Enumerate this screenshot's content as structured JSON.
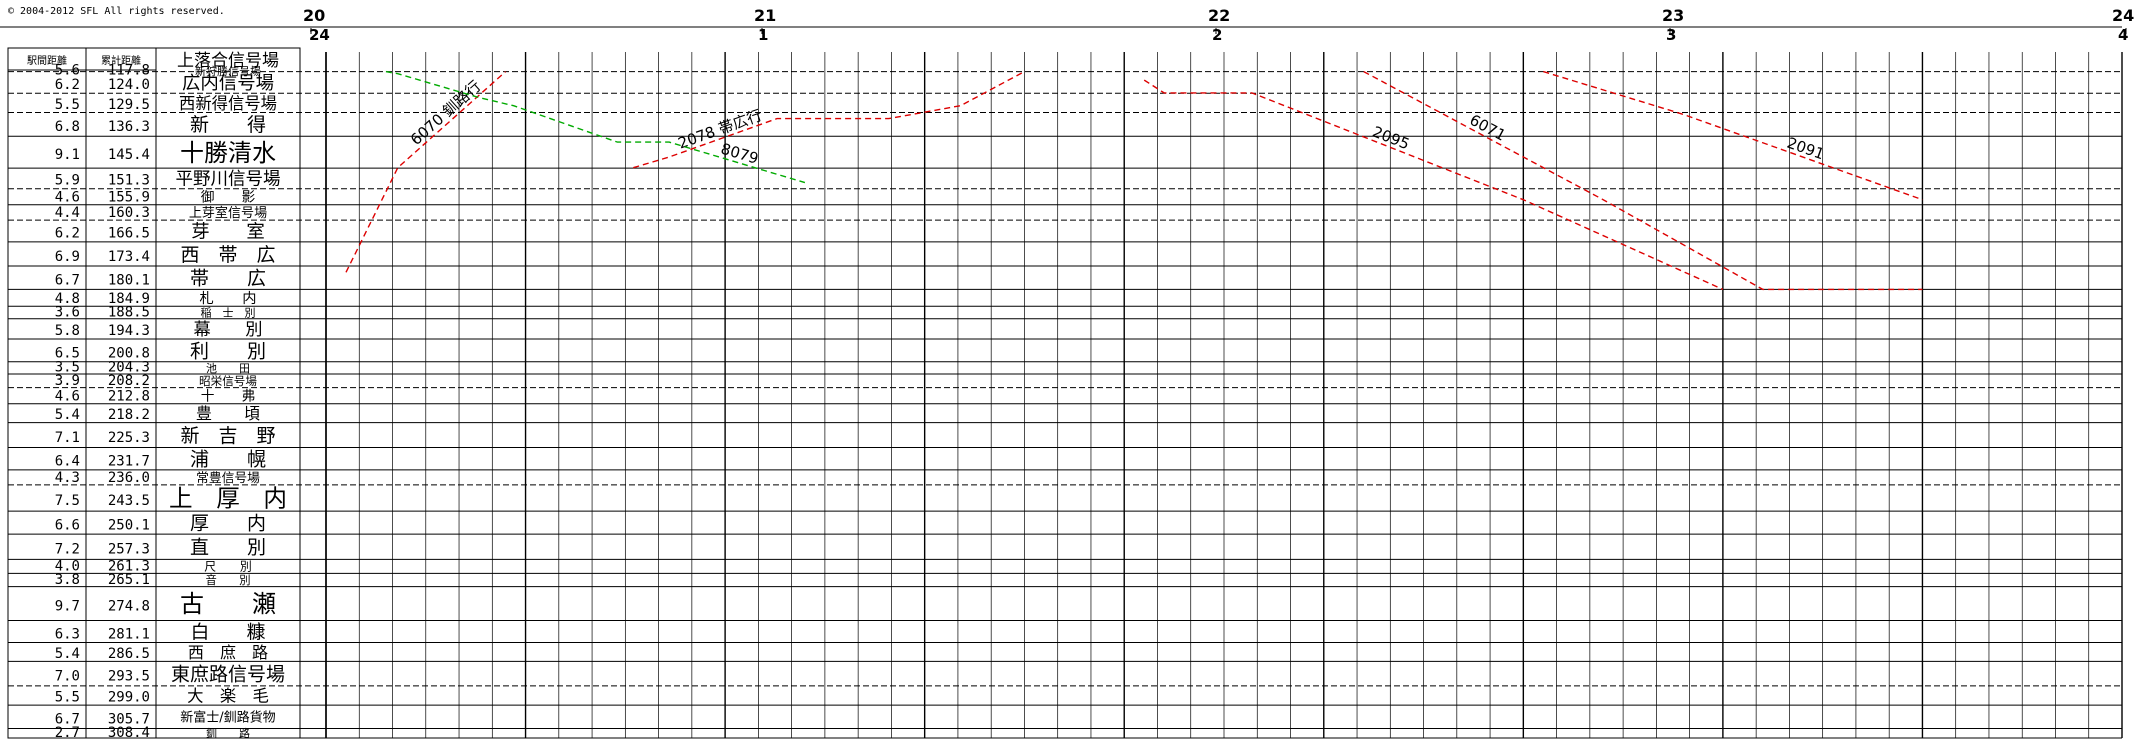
{
  "copyright": "© 2004-2012 SFL All rights reserved.",
  "header": {
    "top_hours": [
      "20",
      "21",
      "22",
      "23",
      "24"
    ],
    "bottom_hours": [
      "24",
      "1",
      "2",
      "3",
      "4"
    ]
  },
  "columns": {
    "interval": "駅間距離",
    "cumulative": "累計距離",
    "start_station": "上落合信号場"
  },
  "stations": [
    {
      "interval": "5.6",
      "cumulative": "117.8",
      "name": "新狩勝信号場",
      "type": "signal"
    },
    {
      "interval": "6.2",
      "cumulative": "124.0",
      "name": "広内信号場",
      "type": "signal"
    },
    {
      "interval": "5.5",
      "cumulative": "129.5",
      "name": "西新得信号場",
      "type": "signal"
    },
    {
      "interval": "6.8",
      "cumulative": "136.3",
      "name": "新　　得",
      "type": "station"
    },
    {
      "interval": "9.1",
      "cumulative": "145.4",
      "name": "十勝清水",
      "type": "major"
    },
    {
      "interval": "5.9",
      "cumulative": "151.3",
      "name": "平野川信号場",
      "type": "signal"
    },
    {
      "interval": "4.6",
      "cumulative": "155.9",
      "name": "御　　影",
      "type": "station"
    },
    {
      "interval": "4.4",
      "cumulative": "160.3",
      "name": "上芽室信号場",
      "type": "signal"
    },
    {
      "interval": "6.2",
      "cumulative": "166.5",
      "name": "芽　　室",
      "type": "station"
    },
    {
      "interval": "6.9",
      "cumulative": "173.4",
      "name": "西　帯　広",
      "type": "station"
    },
    {
      "interval": "6.7",
      "cumulative": "180.1",
      "name": "帯　　広",
      "type": "station"
    },
    {
      "interval": "4.8",
      "cumulative": "184.9",
      "name": "札　　内",
      "type": "station"
    },
    {
      "interval": "3.6",
      "cumulative": "188.5",
      "name": "稲　士　別",
      "type": "station"
    },
    {
      "interval": "5.8",
      "cumulative": "194.3",
      "name": "幕　　別",
      "type": "station"
    },
    {
      "interval": "6.5",
      "cumulative": "200.8",
      "name": "利　　別",
      "type": "station"
    },
    {
      "interval": "3.5",
      "cumulative": "204.3",
      "name": "池　　田",
      "type": "station"
    },
    {
      "interval": "3.9",
      "cumulative": "208.2",
      "name": "昭栄信号場",
      "type": "signal"
    },
    {
      "interval": "4.6",
      "cumulative": "212.8",
      "name": "十　　弗",
      "type": "station"
    },
    {
      "interval": "5.4",
      "cumulative": "218.2",
      "name": "豊　　頃",
      "type": "station"
    },
    {
      "interval": "7.1",
      "cumulative": "225.3",
      "name": "新　吉　野",
      "type": "station"
    },
    {
      "interval": "6.4",
      "cumulative": "231.7",
      "name": "浦　　幌",
      "type": "station"
    },
    {
      "interval": "4.3",
      "cumulative": "236.0",
      "name": "常豊信号場",
      "type": "signal"
    },
    {
      "interval": "7.5",
      "cumulative": "243.5",
      "name": "上　厚　内",
      "type": "major"
    },
    {
      "interval": "6.6",
      "cumulative": "250.1",
      "name": "厚　　内",
      "type": "station"
    },
    {
      "interval": "7.2",
      "cumulative": "257.3",
      "name": "直　　別",
      "type": "station"
    },
    {
      "interval": "4.0",
      "cumulative": "261.3",
      "name": "尺　　別",
      "type": "station"
    },
    {
      "interval": "3.8",
      "cumulative": "265.1",
      "name": "音　　別",
      "type": "station"
    },
    {
      "interval": "9.7",
      "cumulative": "274.8",
      "name": "古　　瀬",
      "type": "major"
    },
    {
      "interval": "6.3",
      "cumulative": "281.1",
      "name": "白　　糠",
      "type": "station"
    },
    {
      "interval": "5.4",
      "cumulative": "286.5",
      "name": "西　庶　路",
      "type": "station"
    },
    {
      "interval": "7.0",
      "cumulative": "293.5",
      "name": "東庶路信号場",
      "type": "signal"
    },
    {
      "interval": "5.5",
      "cumulative": "299.0",
      "name": "大　楽　毛",
      "type": "station"
    },
    {
      "interval": "6.7",
      "cumulative": "305.7",
      "name": "新富士/釧路貨物",
      "type": "small"
    },
    {
      "interval": "2.7",
      "cumulative": "308.4",
      "name": "釧　　路",
      "type": "station"
    }
  ],
  "trains": [
    {
      "label": "6070 釧路行",
      "color": "#dd0000",
      "points": [
        [
          1210,
          20.05
        ],
        [
          965,
          20.18
        ],
        [
          740,
          20.45
        ]
      ]
    },
    {
      "label": "2078 帯広行",
      "color": "#dd0000",
      "points": [
        [
          965,
          20.77
        ],
        [
          940,
          20.86
        ],
        [
          850,
          21.13
        ],
        [
          850,
          21.41
        ],
        [
          820,
          21.59
        ],
        [
          740,
          21.75
        ]
      ]
    },
    {
      "label": "8079",
      "color": "#00aa00",
      "points": [
        [
          740,
          20.15
        ],
        [
          745,
          20.18
        ],
        [
          800,
          20.38
        ],
        [
          820,
          20.47
        ],
        [
          905,
          20.73
        ],
        [
          905,
          20.86
        ],
        [
          1000,
          21.2
        ]
      ]
    },
    {
      "label": "2095",
      "color": "#dd0000",
      "points": [
        [
          760,
          22.05
        ],
        [
          790,
          22.1
        ],
        [
          790,
          22.32
        ],
        [
          1040,
          23.0
        ],
        [
          1250,
          23.5
        ]
      ]
    },
    {
      "label": "6071",
      "color": "#dd0000",
      "points": [
        [
          740,
          22.6
        ],
        [
          1040,
          23.2
        ],
        [
          1250,
          23.6
        ],
        [
          1250,
          24.0
        ]
      ]
    },
    {
      "label": "2091",
      "color": "#dd0000",
      "points": [
        [
          740,
          23.05
        ],
        [
          840,
          23.4
        ],
        [
          1040,
          24.0
        ]
      ]
    }
  ]
}
